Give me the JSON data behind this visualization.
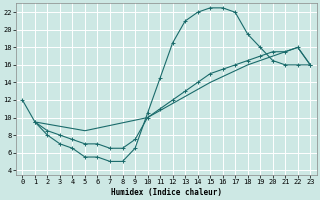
{
  "xlabel": "Humidex (Indice chaleur)",
  "bg_color": "#cde8e4",
  "grid_color": "#ffffff",
  "line_color": "#1a6b6b",
  "xlim": [
    -0.5,
    23.5
  ],
  "ylim": [
    3.5,
    23
  ],
  "xticks": [
    0,
    1,
    2,
    3,
    4,
    5,
    6,
    7,
    8,
    9,
    10,
    11,
    12,
    13,
    14,
    15,
    16,
    17,
    18,
    19,
    20,
    21,
    22,
    23
  ],
  "yticks": [
    4,
    6,
    8,
    10,
    12,
    14,
    16,
    18,
    20,
    22
  ],
  "curve1_x": [
    0,
    1,
    2,
    3,
    4,
    5,
    6,
    7,
    8,
    9,
    10,
    11,
    12,
    13,
    14,
    15,
    16,
    17,
    18,
    19,
    20,
    21,
    22,
    23
  ],
  "curve1_y": [
    12,
    9.5,
    8.0,
    7.0,
    6.5,
    5.5,
    5.5,
    5.0,
    5.0,
    6.5,
    10.5,
    14.5,
    18.5,
    21.0,
    22.0,
    22.5,
    22.5,
    22.0,
    19.5,
    18.0,
    16.5,
    16.0,
    16.0,
    16.0
  ],
  "curve2_x": [
    1,
    5,
    10,
    15,
    18,
    20,
    21,
    22,
    23
  ],
  "curve2_y": [
    9.5,
    8.5,
    10.0,
    14.0,
    16.0,
    17.0,
    17.5,
    18.0,
    16.0
  ],
  "curve3_x": [
    1,
    2,
    3,
    4,
    5,
    6,
    7,
    8,
    9,
    10,
    11,
    12,
    13,
    14,
    15,
    16,
    17,
    18,
    19,
    20,
    21,
    22,
    23
  ],
  "curve3_y": [
    9.5,
    8.5,
    8.0,
    7.5,
    7.0,
    7.0,
    6.5,
    6.5,
    7.5,
    10.0,
    11.0,
    12.0,
    13.0,
    14.0,
    15.0,
    15.5,
    16.0,
    16.5,
    17.0,
    17.5,
    17.5,
    18.0,
    16.0
  ]
}
